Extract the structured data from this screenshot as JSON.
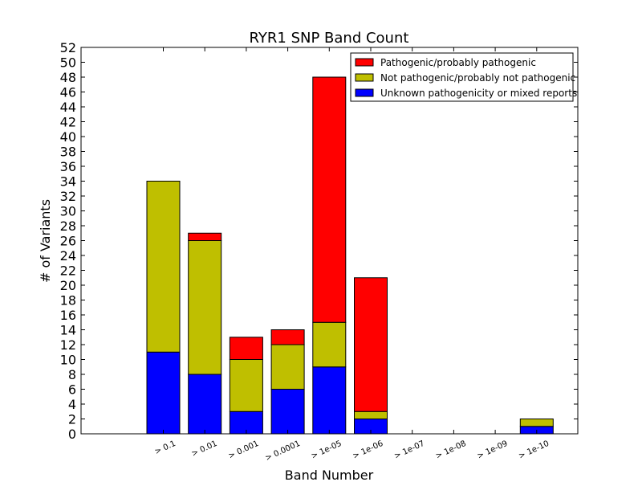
{
  "chart_data": {
    "type": "bar",
    "stacked": true,
    "title": "RYR1 SNP Band Count",
    "xlabel": "Band Number",
    "ylabel": "# of Variants",
    "ylim": [
      0,
      52
    ],
    "ytick_step": 2,
    "categories": [
      "> 0.1",
      "> 0.01",
      "> 0.001",
      "> 0.0001",
      "> 1e-05",
      "> 1e-06",
      "> 1e-07",
      "> 1e-08",
      "> 1e-09",
      "> 1e-10"
    ],
    "series": [
      {
        "name": "Unknown pathogenicity or mixed reports",
        "color": "#0000ff",
        "values": [
          11,
          8,
          3,
          6,
          9,
          2,
          0,
          0,
          0,
          1
        ]
      },
      {
        "name": "Not pathogenic/probably not pathogenic",
        "color": "#bfbf00",
        "values": [
          23,
          18,
          7,
          6,
          6,
          1,
          0,
          0,
          0,
          1
        ]
      },
      {
        "name": "Pathogenic/probably pathogenic",
        "color": "#ff0000",
        "values": [
          0,
          1,
          3,
          2,
          33,
          18,
          0,
          0,
          0,
          0
        ]
      }
    ],
    "legend_order": [
      "Pathogenic/probably pathogenic",
      "Not pathogenic/probably not pathogenic",
      "Unknown pathogenicity or mixed reports"
    ],
    "legend_position": "top-right",
    "grid": false
  }
}
